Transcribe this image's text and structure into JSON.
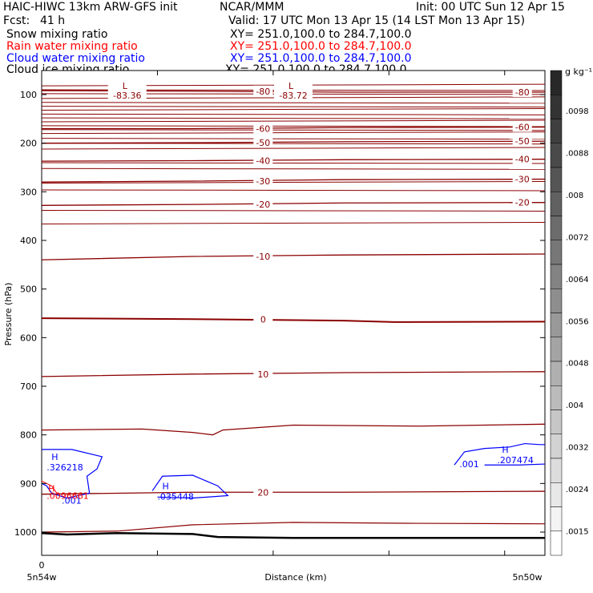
{
  "header": {
    "model": "HAIC-HIWC 13km ARW-GFS init",
    "center": "NCAR/MMM",
    "init": "Init: 00 UTC Sun 12 Apr 15",
    "fcst_label": "Fcst:",
    "fcst_value": "41 h",
    "valid": "Valid: 17 UTC Mon 13 Apr 15 (14 LST Mon 13 Apr 15)"
  },
  "fields": [
    {
      "name": "Snow mixing ratio",
      "xy": "XY= 251.0,100.0 to 284.7,100.0",
      "color": "#000000"
    },
    {
      "name": "Rain water mixing ratio",
      "xy": "XY= 251.0,100.0 to 284.7,100.0",
      "color": "#ff0000"
    },
    {
      "name": "Cloud water mixing ratio",
      "xy": "XY= 251.0,100.0 to 284.7,100.0",
      "color": "#0000ff"
    },
    {
      "name": "Cloud ice mixing ratio",
      "xy": "XY= 251.0,100.0 to 284.7,100.0",
      "color": "#000000"
    }
  ],
  "chart_data": {
    "type": "contour cross-section",
    "ylabel": "Pressure (hPa)",
    "xlabel": "Distance (km)",
    "x_tick_labels": [
      "0"
    ],
    "x_end_labels": {
      "left": "5n54w",
      "right": "5n50w"
    },
    "ylim": [
      1050,
      50
    ],
    "yticks": [
      100,
      200,
      300,
      400,
      500,
      600,
      700,
      800,
      900,
      1000
    ],
    "xlim": [
      0,
      1
    ],
    "temperature_contours": [
      {
        "level": -80,
        "label": "-80",
        "color": "#8b0000",
        "points": [
          [
            0,
            92
          ],
          [
            0.3,
            93
          ],
          [
            0.6,
            95
          ],
          [
            1,
            95
          ]
        ]
      },
      {
        "level": -60,
        "label": "-60",
        "color": "#8b0000",
        "points": [
          [
            0,
            170
          ],
          [
            0.3,
            170
          ],
          [
            0.6,
            168
          ],
          [
            1,
            167
          ]
        ]
      },
      {
        "level": -50,
        "label": "-50",
        "color": "#8b0000",
        "points": [
          [
            0,
            200
          ],
          [
            0.3,
            199
          ],
          [
            0.6,
            197
          ],
          [
            1,
            196
          ]
        ]
      },
      {
        "level": -40,
        "label": "-40",
        "color": "#8b0000",
        "points": [
          [
            0,
            237
          ],
          [
            0.3,
            236
          ],
          [
            0.6,
            234
          ],
          [
            1,
            233
          ]
        ]
      },
      {
        "level": -30,
        "label": "-30",
        "color": "#8b0000",
        "points": [
          [
            0,
            280
          ],
          [
            0.3,
            278
          ],
          [
            0.6,
            275
          ],
          [
            1,
            274
          ]
        ]
      },
      {
        "level": -20,
        "label": "-20",
        "color": "#8b0000",
        "points": [
          [
            0,
            328
          ],
          [
            0.3,
            326
          ],
          [
            0.6,
            323
          ],
          [
            1,
            322
          ]
        ]
      },
      {
        "level": -10,
        "label": "-10",
        "color": "#8b0000",
        "points": [
          [
            0,
            440
          ],
          [
            0.3,
            433
          ],
          [
            0.6,
            430
          ],
          [
            1,
            428
          ]
        ]
      },
      {
        "level": 0,
        "label": "0",
        "color": "#8b0000",
        "points": [
          [
            0,
            560
          ],
          [
            0.3,
            562
          ],
          [
            0.6,
            565
          ],
          [
            0.7,
            568
          ],
          [
            1,
            567
          ]
        ]
      },
      {
        "level": 10,
        "label": "10",
        "color": "#8b0000",
        "points": [
          [
            0,
            680
          ],
          [
            0.3,
            675
          ],
          [
            0.6,
            672
          ],
          [
            1,
            670
          ]
        ]
      },
      {
        "level": 20,
        "label": "20",
        "color": "#8b0000",
        "points": [
          [
            0,
            922
          ],
          [
            0.3,
            918
          ],
          [
            0.6,
            918
          ],
          [
            1,
            916
          ]
        ]
      }
    ],
    "min_labels": [
      {
        "letter": "L",
        "value": "-83.36",
        "x": 0.17,
        "p": 100
      },
      {
        "letter": "L",
        "value": "-83.72",
        "x": 0.5,
        "p": 100
      }
    ],
    "cloud_water_maxima": [
      {
        "letter": "H",
        "value": ".326218",
        "x": 0.01,
        "p": 865,
        "color": "#0000ff"
      },
      {
        "letter": "H",
        "value": ".035448",
        "x": 0.23,
        "p": 925,
        "color": "#0000ff"
      },
      {
        "letter": "H",
        "value": ".207474",
        "x": 0.905,
        "p": 850,
        "color": "#0000ff"
      }
    ],
    "contour_value_labels": [
      {
        "value": ".001",
        "x": 0.04,
        "p": 935,
        "color": "#0000ff"
      },
      {
        "value": ".001",
        "x": 0.83,
        "p": 860,
        "color": "#0000ff"
      },
      {
        "value": ".0096661",
        "x": 0.01,
        "p": 925,
        "color": "#ff0000"
      }
    ],
    "rain_maxima": [
      {
        "letter": "H",
        "x": 0.01,
        "p": 910,
        "color": "#ff0000"
      }
    ],
    "colorbar": {
      "unit": "g kg⁻¹",
      "tick_labels": [
        ".0098",
        ".0088",
        ".008",
        ".0072",
        ".0064",
        ".0056",
        ".0048",
        ".004",
        ".0032",
        ".0024",
        ".0015"
      ]
    }
  }
}
